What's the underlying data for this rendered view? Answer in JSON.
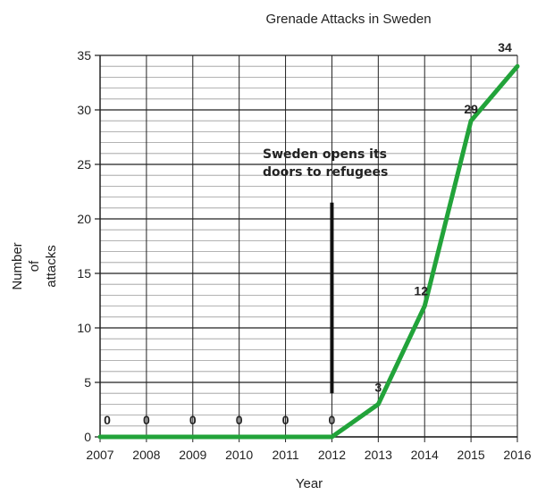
{
  "chart_data": {
    "type": "line",
    "title": "Grenade Attacks in Sweden",
    "xlabel": "Year",
    "ylabel": [
      "Number",
      "of",
      "attacks"
    ],
    "x": [
      2007,
      2008,
      2009,
      2010,
      2011,
      2012,
      2013,
      2014,
      2015,
      2016
    ],
    "series": [
      {
        "values": [
          0,
          0,
          0,
          0,
          0,
          0,
          3,
          12,
          29,
          34
        ],
        "color": "#22a33a"
      }
    ],
    "data_labels": [
      "0",
      "0",
      "0",
      "0",
      "0",
      "0",
      "3",
      "12",
      "29",
      "34"
    ],
    "ylim": [
      0,
      35
    ],
    "xlim": [
      2007,
      2016
    ],
    "ytick_step": 5,
    "minor_ytick_step": 1,
    "grid": true,
    "annotation": {
      "lines": [
        "Sweden opens its",
        "doors to refugees"
      ],
      "x": 2012,
      "marker_y_range": [
        4,
        21.5
      ]
    }
  }
}
